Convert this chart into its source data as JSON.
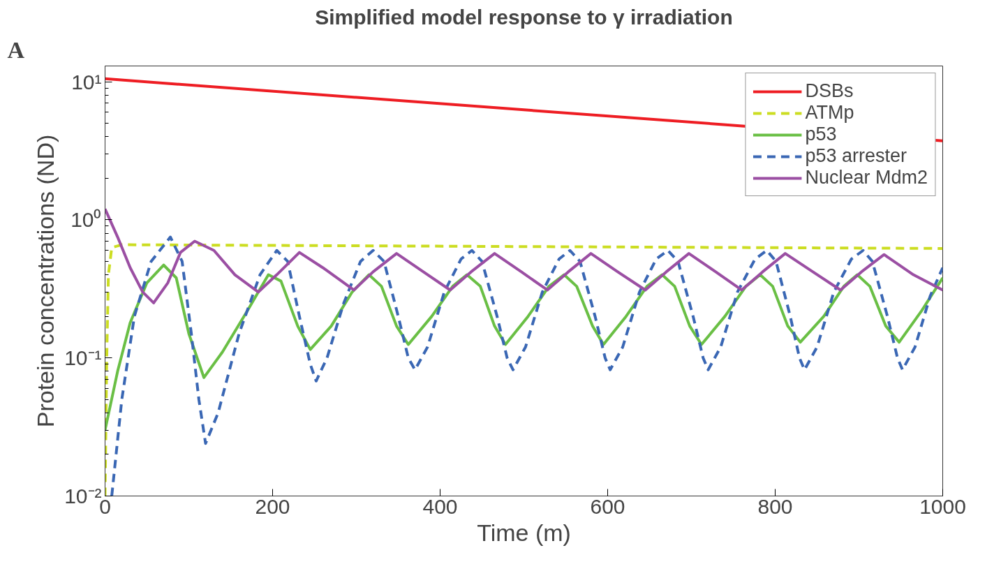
{
  "chart_data": {
    "type": "line",
    "title": "Simplified model response to γ irradiation",
    "xlabel": "Time (m)",
    "ylabel": "Protein concentrations (ND)",
    "annotations": [
      "A"
    ],
    "log": "y",
    "grid": false,
    "legend": "top right",
    "xlim": [
      0,
      1000
    ],
    "ylim": [
      0.01,
      13
    ],
    "xticks": [
      0,
      200,
      400,
      600,
      800,
      1000
    ],
    "yticks": [
      {
        "value": 0.01,
        "label": "10⁻²"
      },
      {
        "value": 0.1,
        "label": "10⁻¹"
      },
      {
        "value": 1,
        "label": "10⁰"
      },
      {
        "value": 10,
        "label": "10¹"
      }
    ],
    "series": [
      {
        "name": "DSBs",
        "color": "#ee1d23",
        "line_style": "solid",
        "x": [
          0,
          500,
          1000
        ],
        "values": [
          10.5,
          6.26,
          3.73
        ]
      },
      {
        "name": "ATMp",
        "color": "#ccdd22",
        "line_style": "dashed",
        "x": [
          0,
          2,
          4,
          8,
          20,
          500,
          1000
        ],
        "values": [
          0.01,
          0.1,
          0.4,
          0.63,
          0.66,
          0.64,
          0.62
        ]
      },
      {
        "name": "p53",
        "color": "#6abf45",
        "line_style": "solid",
        "x": [
          0,
          15,
          30,
          50,
          70,
          85,
          100,
          118,
          140,
          170,
          195,
          210,
          230,
          245,
          270,
          295,
          315,
          330,
          348,
          362,
          390,
          415,
          432,
          448,
          465,
          478,
          505,
          530,
          548,
          563,
          582,
          595,
          622,
          647,
          665,
          680,
          698,
          712,
          740,
          765,
          782,
          797,
          815,
          830,
          858,
          882,
          898,
          913,
          932,
          948,
          975,
          1000
        ],
        "values": [
          0.03,
          0.08,
          0.18,
          0.35,
          0.47,
          0.38,
          0.15,
          0.072,
          0.11,
          0.22,
          0.4,
          0.36,
          0.17,
          0.115,
          0.17,
          0.3,
          0.4,
          0.33,
          0.17,
          0.125,
          0.2,
          0.33,
          0.4,
          0.33,
          0.17,
          0.125,
          0.2,
          0.33,
          0.4,
          0.33,
          0.17,
          0.125,
          0.2,
          0.33,
          0.4,
          0.33,
          0.17,
          0.125,
          0.2,
          0.33,
          0.4,
          0.33,
          0.17,
          0.13,
          0.2,
          0.33,
          0.4,
          0.33,
          0.17,
          0.13,
          0.22,
          0.38
        ]
      },
      {
        "name": "p53 arrester",
        "color": "#3a67b4",
        "line_style": "dashed",
        "x": [
          8,
          20,
          35,
          55,
          78,
          92,
          103,
          112,
          120,
          135,
          160,
          185,
          205,
          218,
          232,
          245,
          252,
          265,
          285,
          305,
          320,
          333,
          350,
          362,
          370,
          385,
          405,
          425,
          438,
          450,
          468,
          480,
          487,
          502,
          522,
          542,
          555,
          567,
          585,
          597,
          603,
          618,
          638,
          658,
          672,
          684,
          702,
          714,
          720,
          735,
          755,
          776,
          790,
          801,
          818,
          829,
          835,
          850,
          870,
          891,
          905,
          916,
          934,
          946,
          952,
          967,
          985,
          1000
        ],
        "values": [
          0.01,
          0.05,
          0.2,
          0.5,
          0.75,
          0.5,
          0.15,
          0.05,
          0.024,
          0.04,
          0.15,
          0.4,
          0.6,
          0.5,
          0.2,
          0.09,
          0.068,
          0.1,
          0.25,
          0.5,
          0.6,
          0.5,
          0.2,
          0.1,
          0.082,
          0.12,
          0.3,
          0.52,
          0.6,
          0.5,
          0.2,
          0.1,
          0.082,
          0.12,
          0.3,
          0.52,
          0.6,
          0.5,
          0.2,
          0.1,
          0.082,
          0.12,
          0.3,
          0.52,
          0.6,
          0.5,
          0.2,
          0.1,
          0.082,
          0.12,
          0.3,
          0.52,
          0.6,
          0.5,
          0.2,
          0.1,
          0.082,
          0.12,
          0.3,
          0.52,
          0.6,
          0.5,
          0.2,
          0.1,
          0.082,
          0.12,
          0.28,
          0.45
        ]
      },
      {
        "name": "Nuclear Mdm2",
        "color": "#9b4fa3",
        "line_style": "solid",
        "x": [
          0,
          15,
          30,
          45,
          58,
          75,
          90,
          107,
          130,
          155,
          183,
          205,
          232,
          260,
          297,
          320,
          348,
          380,
          412,
          437,
          465,
          497,
          528,
          553,
          580,
          612,
          645,
          670,
          697,
          729,
          760,
          785,
          812,
          845,
          878,
          903,
          930,
          965,
          1000
        ],
        "values": [
          1.2,
          0.75,
          0.45,
          0.3,
          0.25,
          0.35,
          0.58,
          0.7,
          0.6,
          0.4,
          0.3,
          0.4,
          0.58,
          0.45,
          0.31,
          0.42,
          0.57,
          0.42,
          0.31,
          0.42,
          0.57,
          0.42,
          0.31,
          0.42,
          0.57,
          0.42,
          0.31,
          0.42,
          0.57,
          0.42,
          0.31,
          0.42,
          0.57,
          0.42,
          0.31,
          0.42,
          0.56,
          0.4,
          0.31
        ]
      }
    ]
  }
}
